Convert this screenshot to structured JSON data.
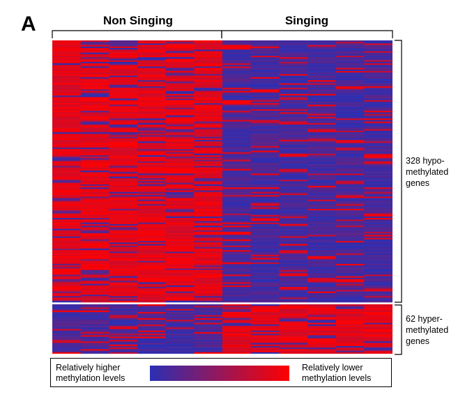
{
  "panel_label": "A",
  "colors": {
    "high": "#2b2fb4",
    "low": "#ff0000"
  },
  "chart_data": {
    "type": "heatmap",
    "title": "",
    "column_groups": [
      {
        "name": "Non Singing",
        "n_columns": 6
      },
      {
        "name": "Singing",
        "n_columns": 6
      }
    ],
    "row_clusters": [
      {
        "label": "328 hypo-\nmethylated\ngenes",
        "n_genes": 328,
        "dominant_color": {
          "Non Singing": "red",
          "Singing": "blue"
        }
      },
      {
        "label": "62 hyper-\nmethylated\ngenes",
        "n_genes": 62,
        "dominant_color": {
          "Non Singing": "blue",
          "Singing": "red"
        }
      }
    ],
    "color_scale": {
      "low_label": "Relatively higher\nmethylation levels",
      "high_label": "Relatively lower\nmethylation levels",
      "low_color": "#2b2fb4",
      "high_color": "#ff0000"
    }
  }
}
